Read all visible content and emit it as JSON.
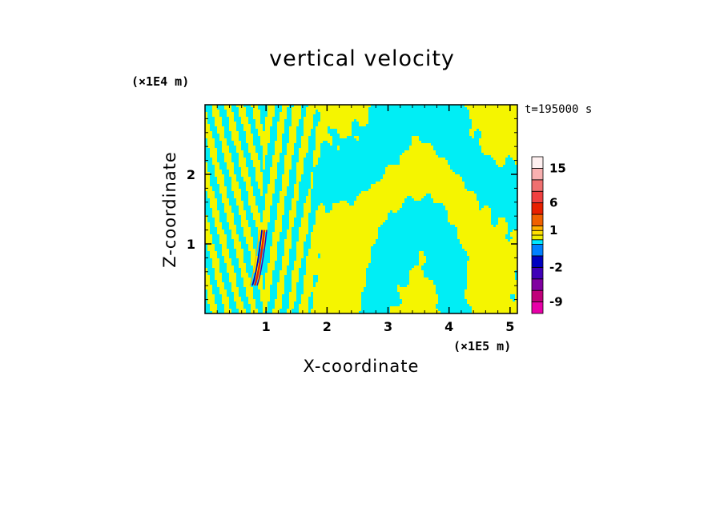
{
  "chart_data": {
    "type": "heatmap",
    "title": "vertical velocity",
    "xlabel": "X-coordinate",
    "ylabel": "Z-coordinate",
    "x_unit": "(×1E5 m)",
    "y_unit": "(×1E4 m)",
    "time_label": "t=195000 s",
    "xlim": [
      0,
      5.12
    ],
    "ylim": [
      0,
      3.0
    ],
    "x_ticks": [
      "1",
      "2",
      "3",
      "4",
      "5"
    ],
    "y_ticks": [
      "1",
      "2"
    ],
    "x_tick_values": [
      1,
      2,
      3,
      4,
      5
    ],
    "y_tick_values": [
      1,
      2
    ],
    "colorbar": {
      "labels": [
        "15",
        "6",
        "1",
        "-2",
        "-9"
      ],
      "label_values": [
        15,
        6,
        1,
        -2,
        -9
      ],
      "levels": [
        -12,
        -9,
        -6,
        -4,
        -2,
        -1,
        -0.5,
        0,
        0.5,
        1,
        2,
        4,
        6,
        9,
        12,
        15,
        20
      ],
      "colors": [
        "#e800a8",
        "#c0007a",
        "#8000a0",
        "#4000b8",
        "#0000c0",
        "#0080ff",
        "#00e8ff",
        "#f0f000",
        "#ffe000",
        "#ffb000",
        "#f06000",
        "#e82000",
        "#f04040",
        "#f07070",
        "#f8b0b0",
        "#fff0f0"
      ]
    },
    "dominant_fields": {
      "positive_color": "#f5f500",
      "negative_color": "#00eef5",
      "updraft_x": 0.92,
      "updraft_z_top": 1.2
    }
  }
}
